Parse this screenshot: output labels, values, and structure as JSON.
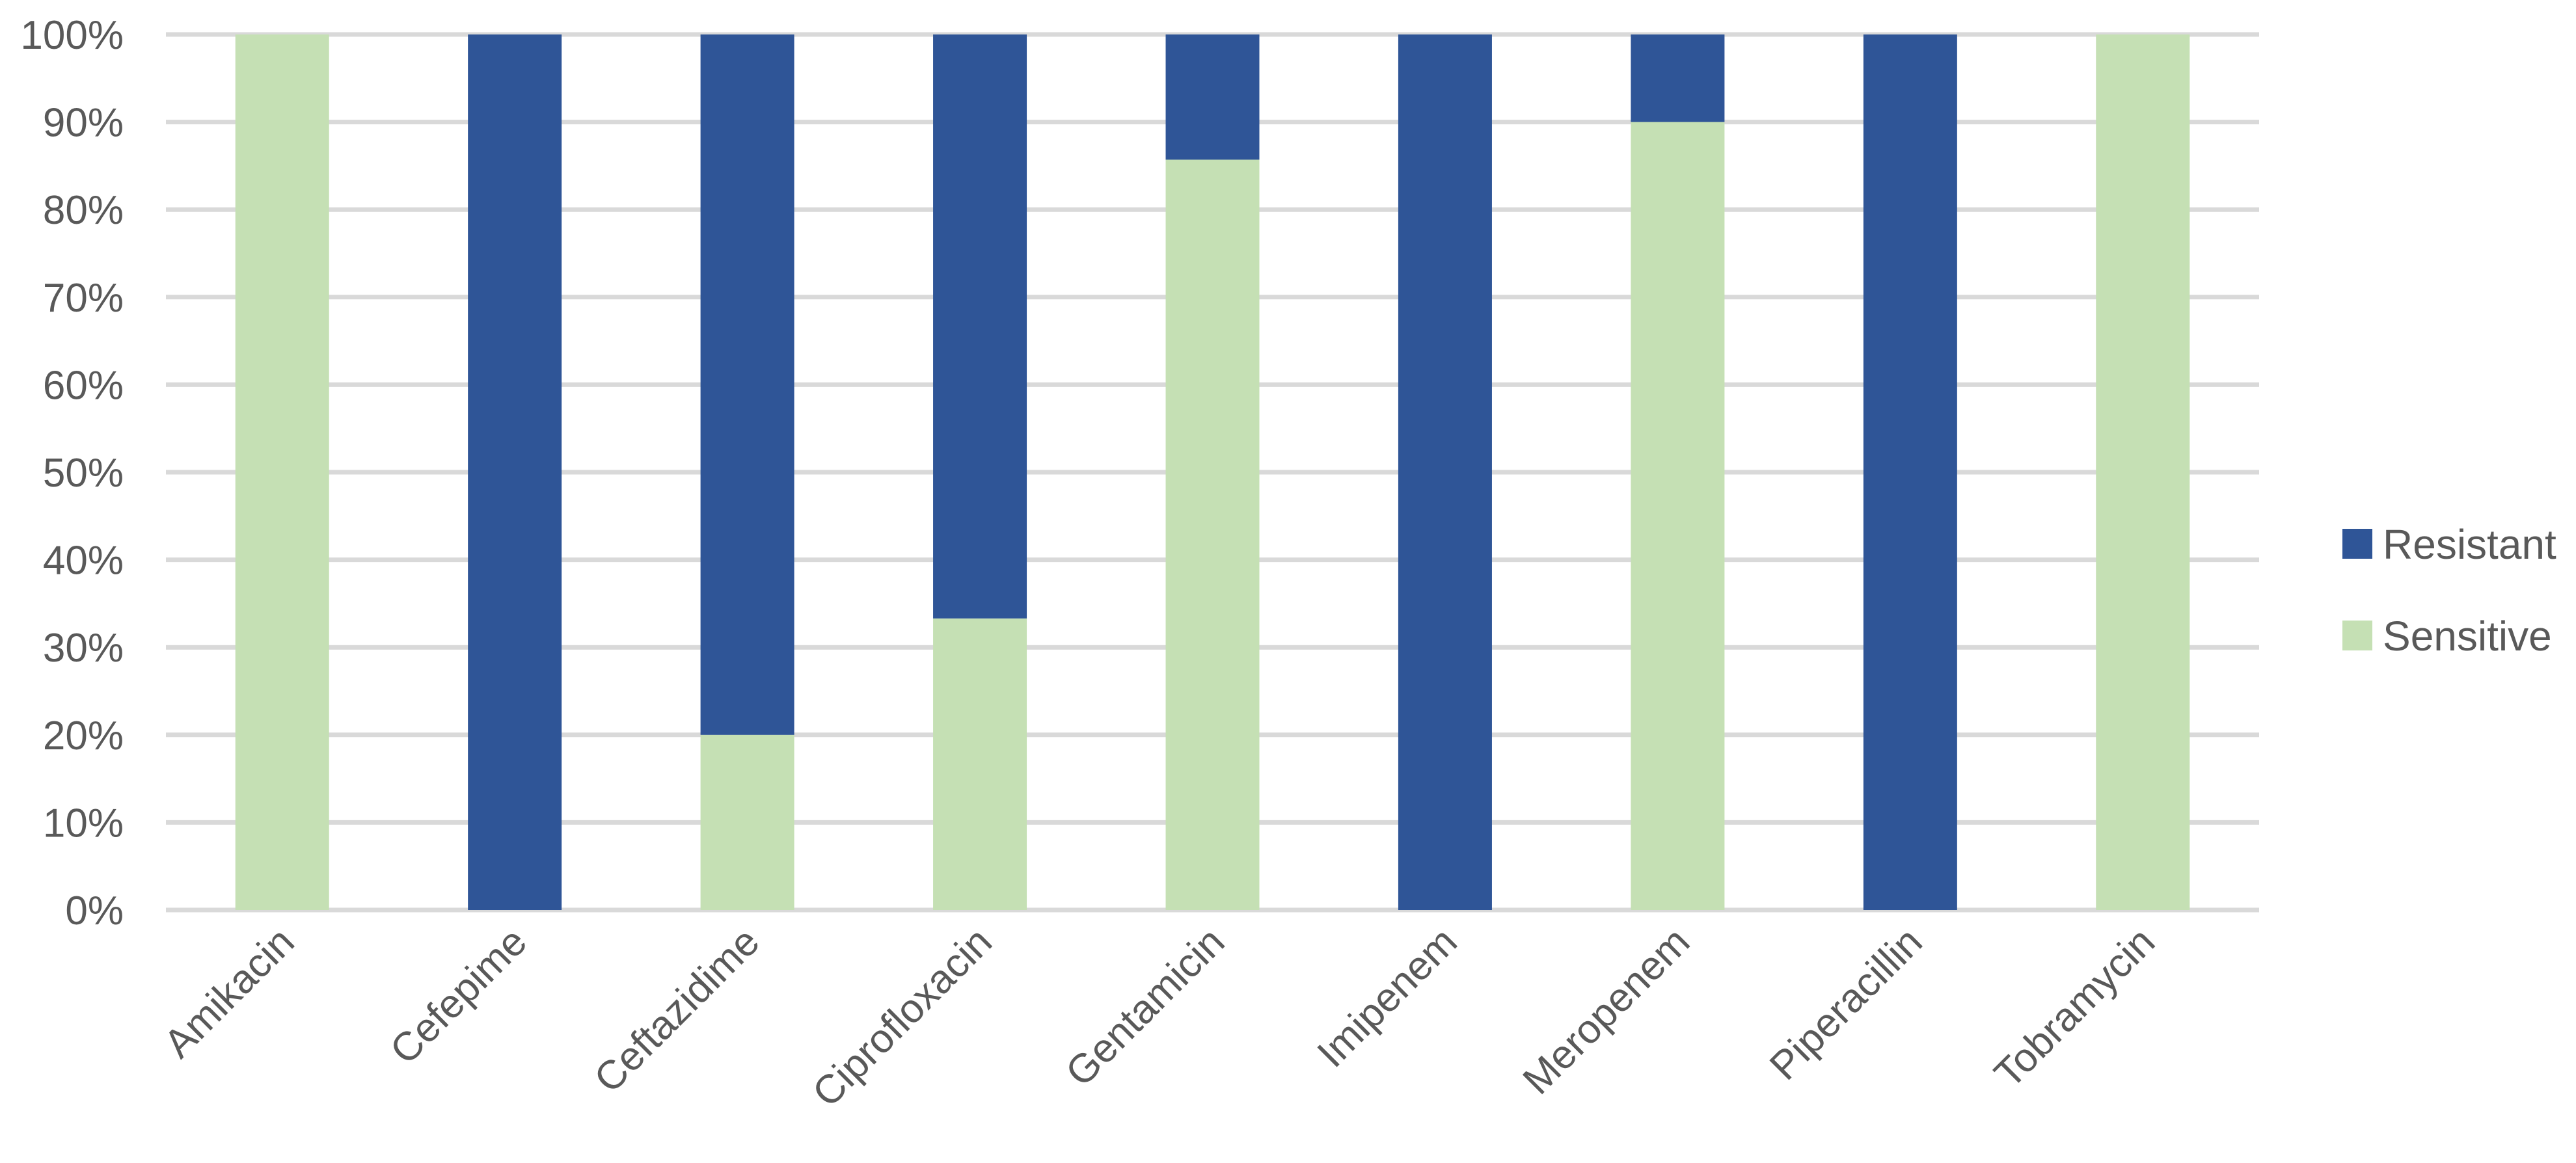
{
  "chart_data": {
    "type": "bar",
    "stacked": true,
    "categories": [
      "Amikacin",
      "Cefepime",
      "Ceftazidime",
      "Ciprofloxacin",
      "Gentamicin",
      "Imipenem",
      "Meropenem",
      "Piperacillin",
      "Tobramycin"
    ],
    "series": [
      {
        "name": "Sensitive",
        "color": "#c5e0b4",
        "values": [
          100,
          0,
          20,
          33.3,
          85.7,
          0,
          90,
          0,
          100
        ]
      },
      {
        "name": "Resistant",
        "color": "#2f5597",
        "values": [
          0,
          100,
          80,
          66.7,
          14.3,
          100,
          10,
          100,
          0
        ]
      }
    ],
    "ylim": [
      0,
      100
    ],
    "yticks": [
      "0%",
      "10%",
      "20%",
      "30%",
      "40%",
      "50%",
      "60%",
      "70%",
      "80%",
      "90%",
      "100%"
    ],
    "grid": true,
    "legend_position": "right",
    "legend_order": [
      "Resistant",
      "Sensitive"
    ]
  }
}
